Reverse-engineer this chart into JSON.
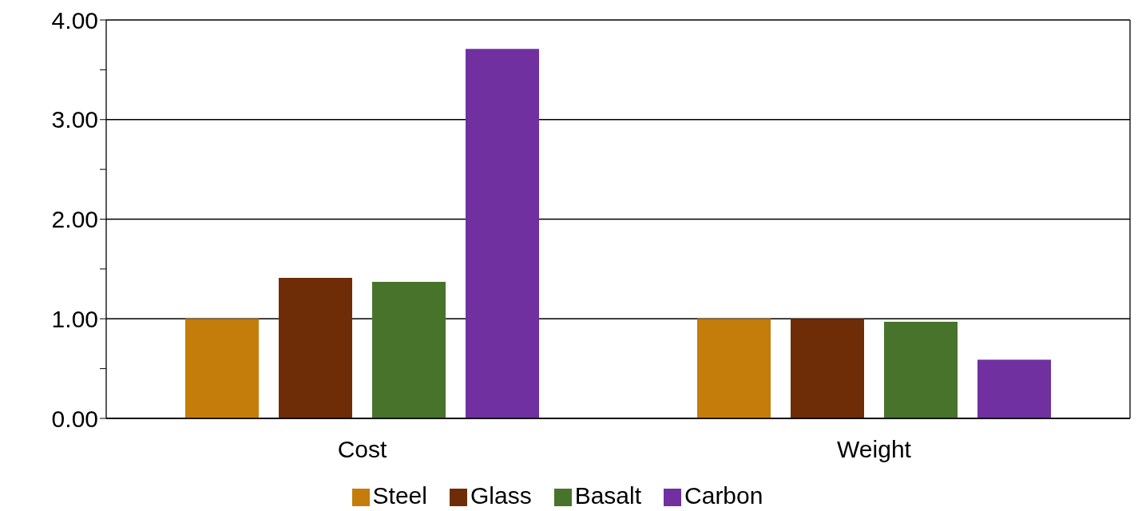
{
  "chart_data": {
    "type": "bar",
    "categories": [
      "Cost",
      "Weight"
    ],
    "series": [
      {
        "name": "Steel",
        "color": "#c47c0a",
        "values": [
          1.0,
          1.0
        ]
      },
      {
        "name": "Glass",
        "color": "#6e2d07",
        "values": [
          1.41,
          1.0
        ]
      },
      {
        "name": "Basalt",
        "color": "#48732a",
        "values": [
          1.37,
          0.97
        ]
      },
      {
        "name": "Carbon",
        "color": "#7030a0",
        "values": [
          3.71,
          0.59
        ]
      }
    ],
    "ylim": [
      0,
      4
    ],
    "yticks": [
      {
        "value": 0,
        "label": "0.00"
      },
      {
        "value": 0.5,
        "label": null
      },
      {
        "value": 1,
        "label": "1.00"
      },
      {
        "value": 1.5,
        "label": null
      },
      {
        "value": 2,
        "label": "2.00"
      },
      {
        "value": 2.5,
        "label": null
      },
      {
        "value": 3,
        "label": "3.00"
      },
      {
        "value": 3.5,
        "label": null
      },
      {
        "value": 4,
        "label": "4.00"
      }
    ],
    "grid": "y",
    "legend": "bottom"
  }
}
